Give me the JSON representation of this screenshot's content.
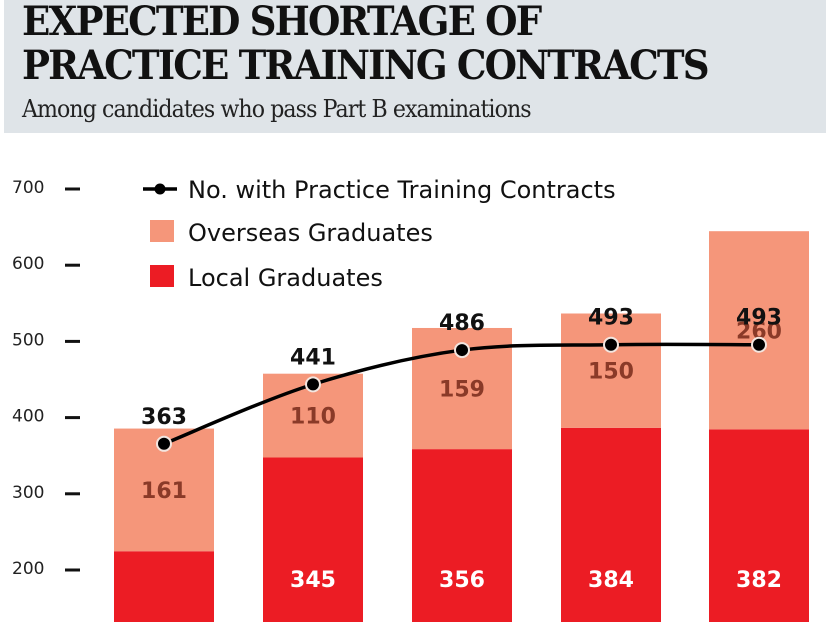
{
  "header": {
    "title_line1": "EXPECTED SHORTAGE OF",
    "title_line2": "PRACTICE TRAINING CONTRACTS",
    "subtitle": "Among candidates who pass Part B examinations"
  },
  "chart_data": {
    "type": "bar",
    "stacked": true,
    "title": "EXPECTED SHORTAGE OF PRACTICE TRAINING CONTRACTS",
    "subtitle": "Among candidates who pass Part B examinations",
    "categories": [
      "",
      "",
      "",
      "",
      ""
    ],
    "yticks": [
      200,
      300,
      400,
      500,
      600,
      700
    ],
    "ylim": [
      0,
      700
    ],
    "grid": false,
    "legend_position": "top-left",
    "series": [
      {
        "name": "Local Graduates",
        "type": "bar",
        "color": "#ec1c24",
        "values": [
          222,
          345,
          356,
          384,
          382
        ],
        "labels": [
          null,
          "345",
          "356",
          "384",
          "382"
        ]
      },
      {
        "name": "Overseas Graduates",
        "type": "bar",
        "color": "#f5967a",
        "values": [
          161,
          110,
          159,
          150,
          260
        ],
        "labels": [
          "161",
          "110",
          "159",
          "150",
          "260"
        ]
      },
      {
        "name": "No. with Practice Training Contracts",
        "type": "line",
        "color": "#000000",
        "values": [
          363,
          441,
          486,
          493,
          493
        ],
        "labels": [
          "363",
          "441",
          "486",
          "493",
          "493"
        ]
      }
    ]
  }
}
